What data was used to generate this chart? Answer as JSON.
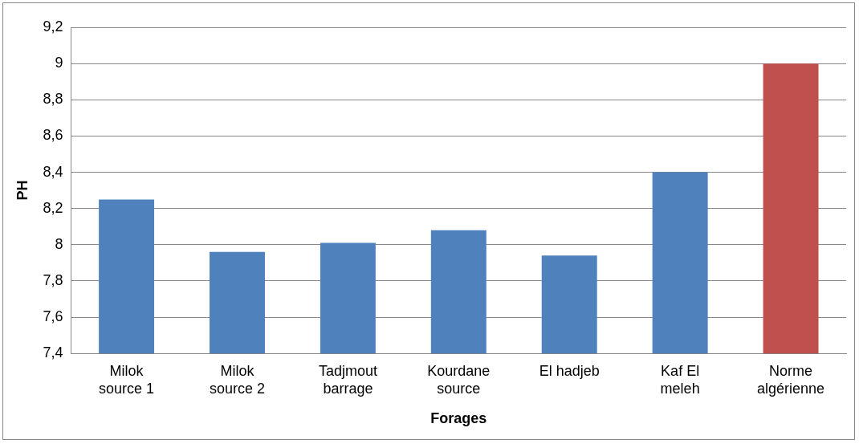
{
  "chart_data": {
    "type": "bar",
    "xlabel": "Forages",
    "ylabel": "PH",
    "categories": [
      "Milok source 1",
      "Milok source 2",
      "Tadjmout barrage",
      "Kourdane source",
      "El hadjeb",
      "Kaf El meleh",
      "Norme algérienne"
    ],
    "values": [
      8.25,
      7.96,
      8.01,
      8.08,
      7.94,
      8.4,
      9
    ],
    "colors": [
      "#4f81bd",
      "#4f81bd",
      "#4f81bd",
      "#4f81bd",
      "#4f81bd",
      "#4f81bd",
      "#c0504d"
    ],
    "ylim": [
      7.4,
      9.2
    ],
    "yticks": [
      {
        "value": 7.4,
        "label": "7,4"
      },
      {
        "value": 7.6,
        "label": "7,6"
      },
      {
        "value": 7.8,
        "label": "7,8"
      },
      {
        "value": 8,
        "label": "8"
      },
      {
        "value": 8.2,
        "label": "8,2"
      },
      {
        "value": 8.4,
        "label": "8,4"
      },
      {
        "value": 8.6,
        "label": "8,6"
      },
      {
        "value": 8.8,
        "label": "8,8"
      },
      {
        "value": 9,
        "label": "9"
      },
      {
        "value": 9.2,
        "label": "9,2"
      }
    ],
    "grid": "y",
    "legend": false
  }
}
